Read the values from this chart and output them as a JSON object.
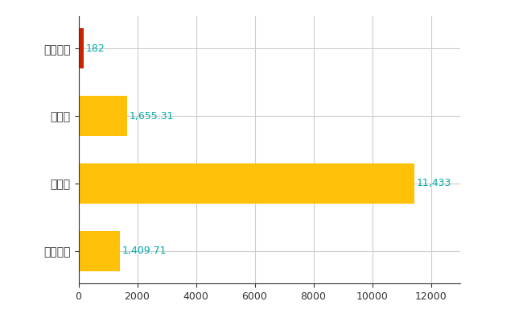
{
  "categories": [
    "全国平均",
    "県最大",
    "県平均",
    "南伊豆町"
  ],
  "values": [
    1409.71,
    11433,
    1655.31,
    182
  ],
  "bar_colors": [
    "#FFC107",
    "#FFC107",
    "#FFC107",
    "#CC2200"
  ],
  "bar_labels": [
    "1,409.71",
    "11,433",
    "1,655.31",
    "182"
  ],
  "label_color": "#00AAAA",
  "xlim": [
    0,
    13000
  ],
  "xticks": [
    0,
    2000,
    4000,
    6000,
    8000,
    10000,
    12000
  ],
  "label_fontsize": 9,
  "tick_fontsize": 9,
  "ytick_fontsize": 10,
  "background_color": "#ffffff",
  "grid_color": "#cccccc",
  "bar_height": 0.6
}
